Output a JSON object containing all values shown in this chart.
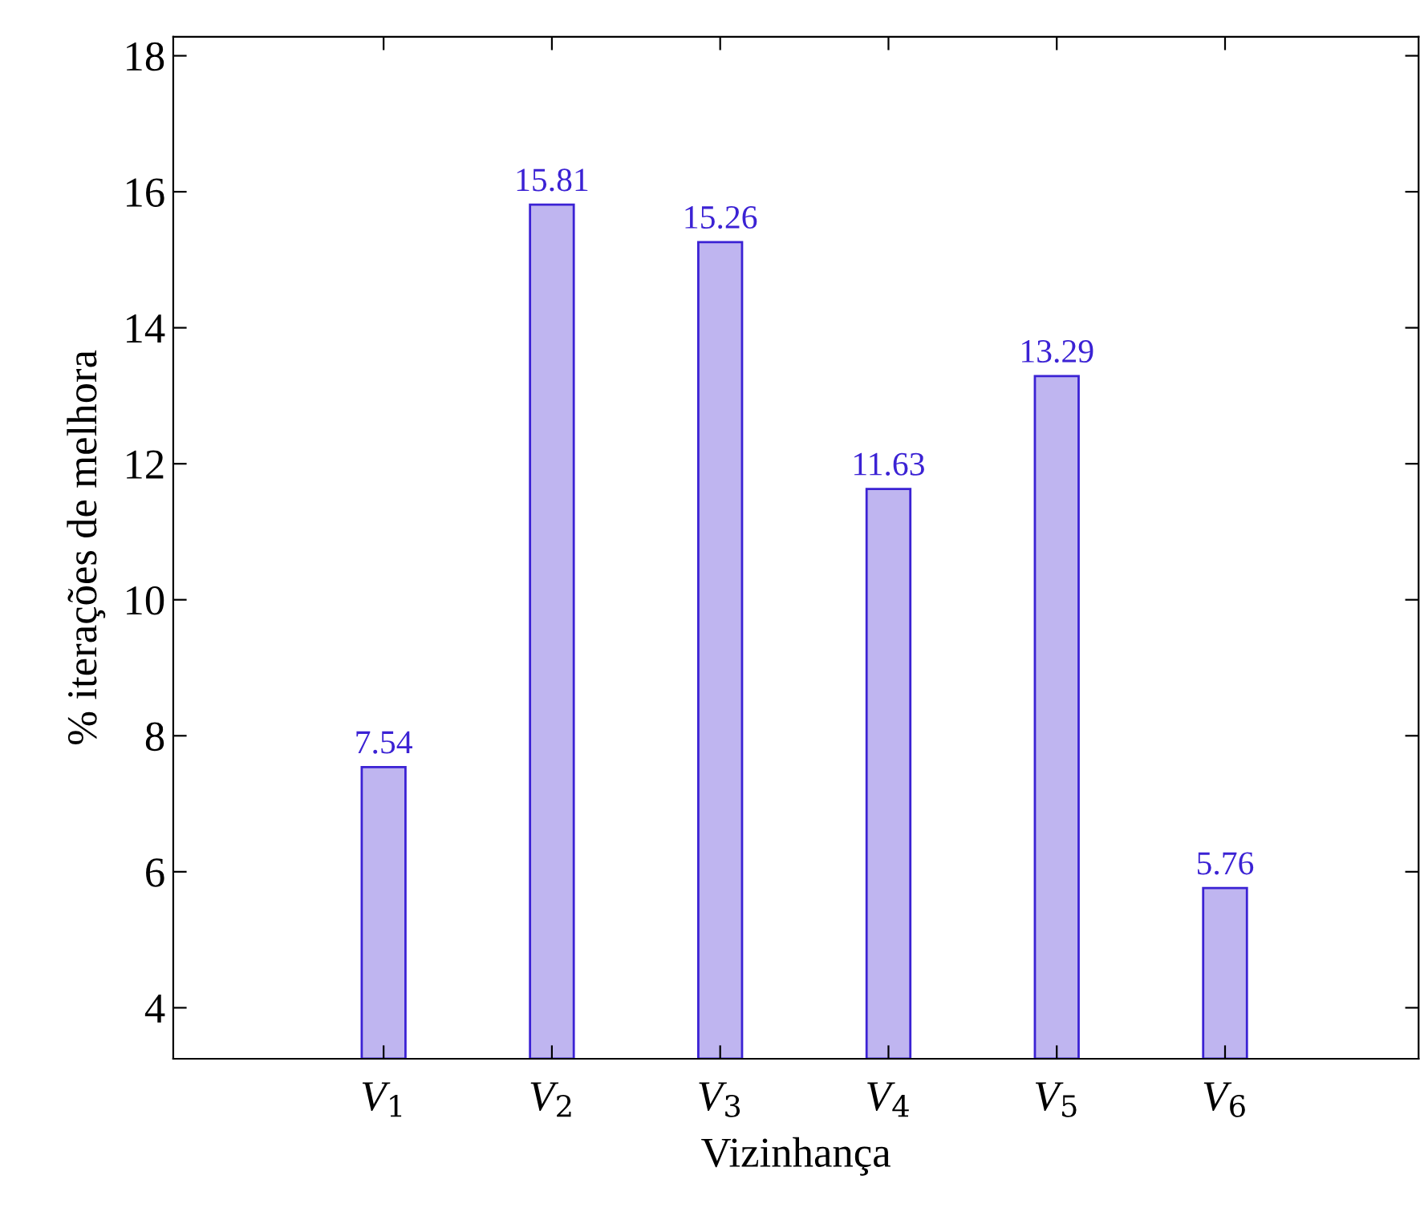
{
  "chart_data": {
    "type": "bar",
    "xlabel": "Vizinhança",
    "ylabel": "% iterações de melhora",
    "categories": [
      "V$_{1}$",
      "V$_{2}$",
      "V$_{3}$",
      "V$_{4}$",
      "V$_{5}$",
      "V$_{6}$"
    ],
    "values": [
      7.54,
      15.81,
      15.26,
      11.63,
      13.29,
      5.76
    ],
    "color": "#bfb5f0",
    "data_labels": true,
    "ylim": [
      3.25,
      18.28
    ],
    "yticks": [
      4,
      6,
      8,
      10,
      12,
      14,
      16,
      18
    ],
    "grid": false,
    "legend": false
  }
}
